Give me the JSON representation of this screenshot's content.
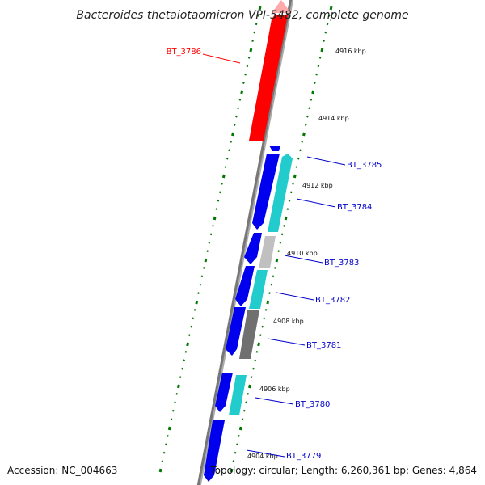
{
  "title": "Bacteroides thetaiotaomicron VPI-5482, complete genome",
  "accession": "Accession: NC_004663",
  "topology": "Topology: circular; Length: 6,260,361 bp; Genes: 4,864",
  "colors": {
    "highlight_gene": "#ff0000",
    "gene_label": "#0000cc",
    "forward_strand": "#0000ee",
    "cyan_gene": "#22cccc",
    "light_gray_gene": "#c0c0c0",
    "dark_gray_gene": "#707070",
    "backbone": "#888888",
    "ticks": "#007700"
  },
  "kbp_ticks": [
    "4916 kbp",
    "4914 kbp",
    "4912 kbp",
    "4910 kbp",
    "4908 kbp",
    "4906 kbp",
    "4904 kbp"
  ],
  "genes": [
    {
      "label": "BT_3786",
      "color": "red"
    },
    {
      "label": "BT_3785",
      "color": "blue"
    },
    {
      "label": "BT_3784",
      "color": "blue"
    },
    {
      "label": "BT_3783",
      "color": "blue"
    },
    {
      "label": "BT_3782",
      "color": "blue"
    },
    {
      "label": "BT_3781",
      "color": "blue"
    },
    {
      "label": "BT_3780",
      "color": "blue"
    },
    {
      "label": "BT_3779",
      "color": "blue"
    }
  ]
}
